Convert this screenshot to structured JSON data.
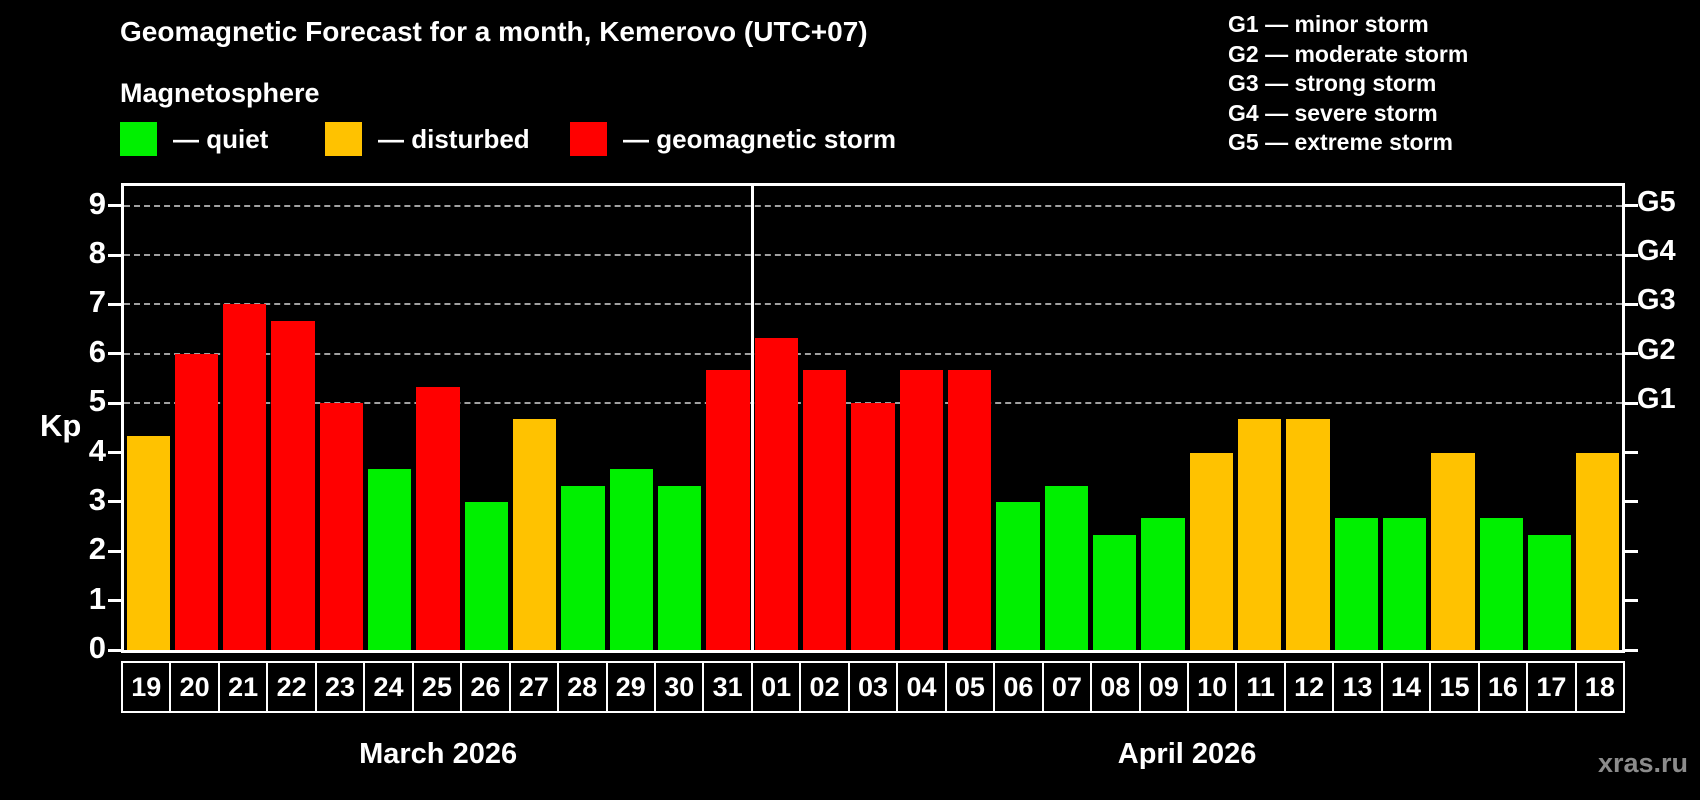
{
  "title": "Geomagnetic Forecast for a month, Kemerovo (UTC+07)",
  "subtitle": "Magnetosphere",
  "axis_label_left": "Kp",
  "watermark": "xras.ru",
  "legend": {
    "quiet": {
      "label": "— quiet",
      "color": "#00F000"
    },
    "disturbed": {
      "label": "— disturbed",
      "color": "#FFC200"
    },
    "storm": {
      "label": "— geomagnetic storm",
      "color": "#FF0000"
    }
  },
  "g_legend": [
    "G1 — minor storm",
    "G2 — moderate storm",
    "G3 — strong storm",
    "G4 — severe storm",
    "G5 — extreme storm"
  ],
  "chart_data": {
    "type": "bar",
    "ylabel": "Kp",
    "ylim": [
      0,
      9.4
    ],
    "yticks": [
      0,
      1,
      2,
      3,
      4,
      5,
      6,
      7,
      8,
      9
    ],
    "grid_values": [
      5,
      6,
      7,
      8,
      9
    ],
    "right_axis_labels": [
      {
        "value": 5,
        "label": "G1"
      },
      {
        "value": 6,
        "label": "G2"
      },
      {
        "value": 7,
        "label": "G3"
      },
      {
        "value": 8,
        "label": "G4"
      },
      {
        "value": 9,
        "label": "G5"
      }
    ],
    "colors": {
      "quiet": "#00F000",
      "disturbed": "#FFC200",
      "storm": "#FF0000"
    },
    "months": [
      {
        "label": "March 2026",
        "days": [
          {
            "day": "19",
            "kp": 4.33,
            "status": "disturbed"
          },
          {
            "day": "20",
            "kp": 6,
            "status": "storm"
          },
          {
            "day": "21",
            "kp": 7,
            "status": "storm"
          },
          {
            "day": "22",
            "kp": 6.67,
            "status": "storm"
          },
          {
            "day": "23",
            "kp": 5,
            "status": "storm"
          },
          {
            "day": "24",
            "kp": 3.67,
            "status": "quiet"
          },
          {
            "day": "25",
            "kp": 5.33,
            "status": "storm"
          },
          {
            "day": "26",
            "kp": 3,
            "status": "quiet"
          },
          {
            "day": "27",
            "kp": 4.67,
            "status": "disturbed"
          },
          {
            "day": "28",
            "kp": 3.33,
            "status": "quiet"
          },
          {
            "day": "29",
            "kp": 3.67,
            "status": "quiet"
          },
          {
            "day": "30",
            "kp": 3.33,
            "status": "quiet"
          },
          {
            "day": "31",
            "kp": 5.67,
            "status": "storm"
          }
        ]
      },
      {
        "label": "April 2026",
        "days": [
          {
            "day": "01",
            "kp": 6.33,
            "status": "storm"
          },
          {
            "day": "02",
            "kp": 5.67,
            "status": "storm"
          },
          {
            "day": "03",
            "kp": 5,
            "status": "storm"
          },
          {
            "day": "04",
            "kp": 5.67,
            "status": "storm"
          },
          {
            "day": "05",
            "kp": 5.67,
            "status": "storm"
          },
          {
            "day": "06",
            "kp": 3,
            "status": "quiet"
          },
          {
            "day": "07",
            "kp": 3.33,
            "status": "quiet"
          },
          {
            "day": "08",
            "kp": 2.33,
            "status": "quiet"
          },
          {
            "day": "09",
            "kp": 2.67,
            "status": "quiet"
          },
          {
            "day": "10",
            "kp": 4,
            "status": "disturbed"
          },
          {
            "day": "11",
            "kp": 4.67,
            "status": "disturbed"
          },
          {
            "day": "12",
            "kp": 4.67,
            "status": "disturbed"
          },
          {
            "day": "13",
            "kp": 2.67,
            "status": "quiet"
          },
          {
            "day": "14",
            "kp": 2.67,
            "status": "quiet"
          },
          {
            "day": "15",
            "kp": 4,
            "status": "disturbed"
          },
          {
            "day": "16",
            "kp": 2.67,
            "status": "quiet"
          },
          {
            "day": "17",
            "kp": 2.33,
            "status": "quiet"
          },
          {
            "day": "18",
            "kp": 4,
            "status": "disturbed"
          }
        ]
      }
    ]
  }
}
